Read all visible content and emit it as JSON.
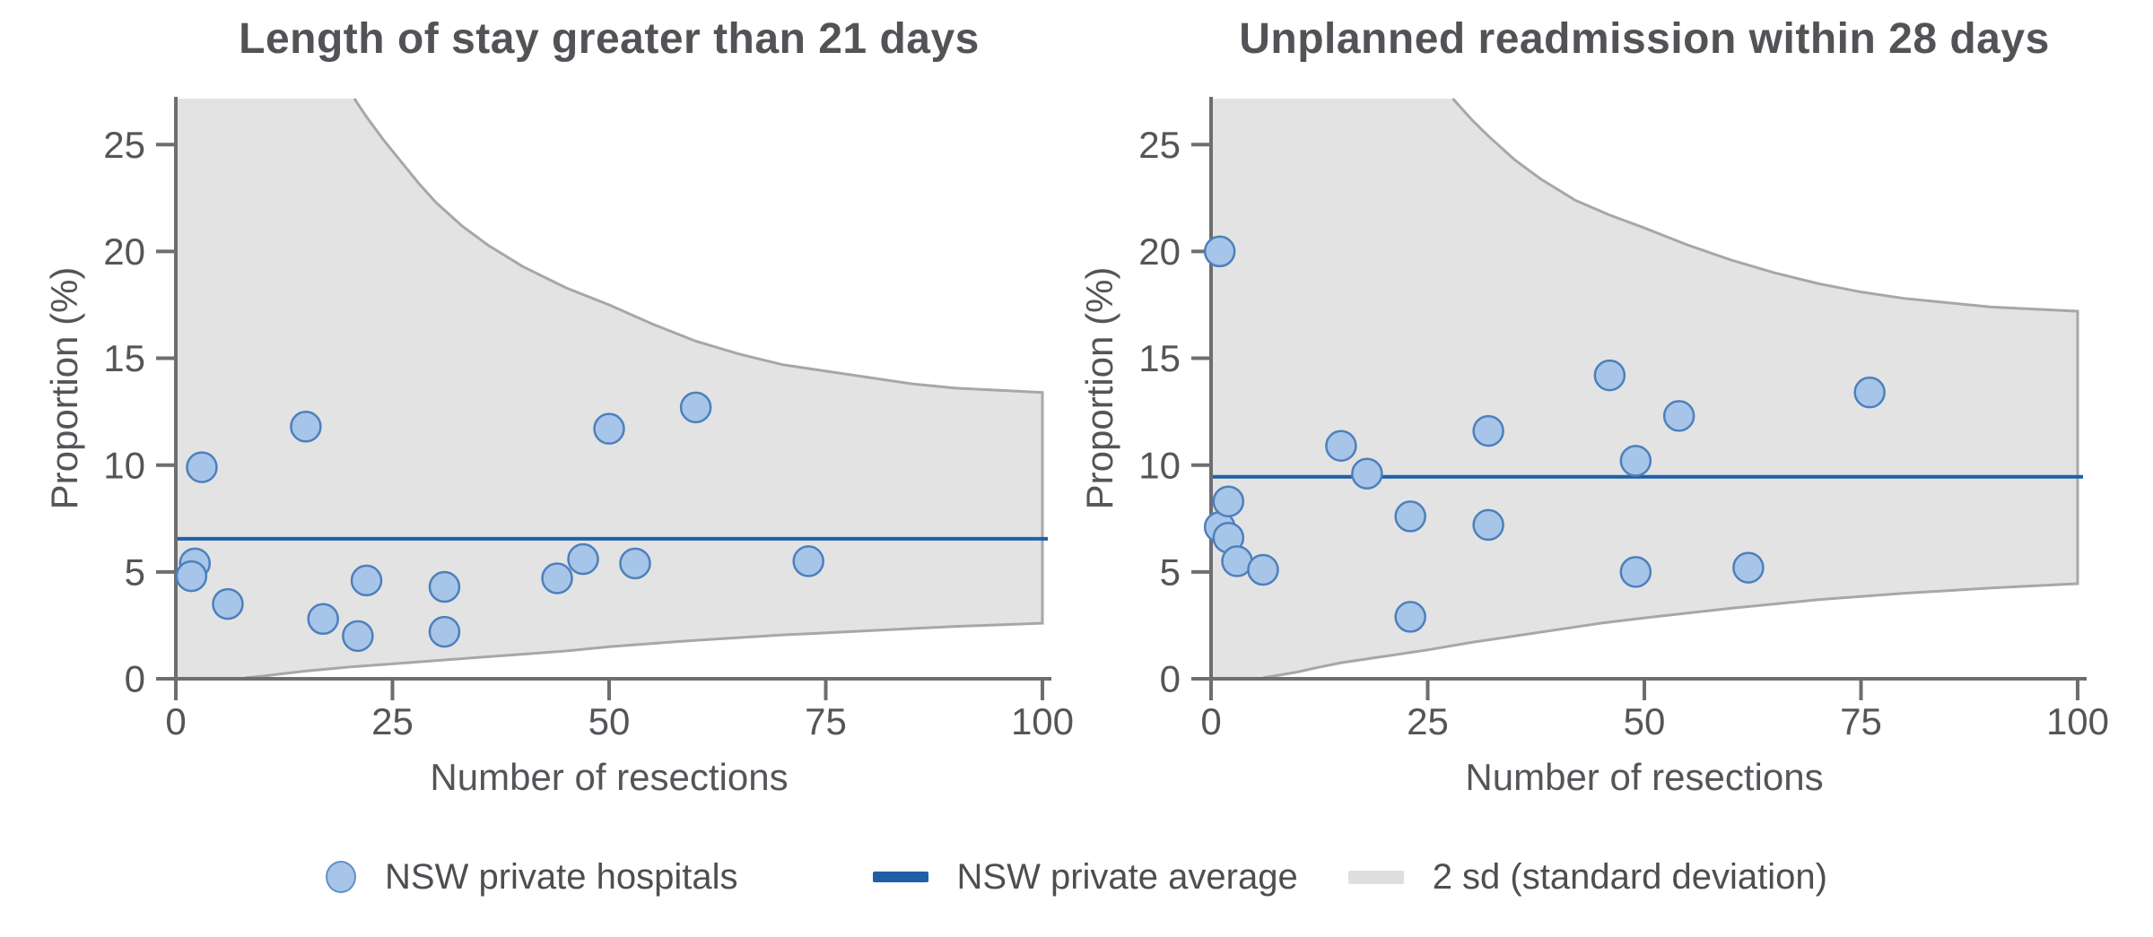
{
  "colors": {
    "average_line": "#1f5fa8",
    "point_fill": "#a6c5e8",
    "point_stroke": "#4d80bb",
    "band_fill": "#e3e3e4",
    "band_outline": "#a7a7a9",
    "axis": "#6d6e70",
    "tick_text": "#545559",
    "title_text": "#525357"
  },
  "legend": {
    "items": [
      {
        "label": "NSW private hospitals",
        "swatch": "dot"
      },
      {
        "label": "NSW private average",
        "swatch": "line"
      },
      {
        "label": "2 sd (standard deviation)",
        "swatch": "band"
      }
    ]
  },
  "chart_data": [
    {
      "type": "scatter",
      "title": "Length of stay greater than 21 days",
      "xlabel": "Number of resections",
      "ylabel": "Proportion (%)",
      "xlim": [
        0,
        100
      ],
      "ylim": [
        0,
        27.15
      ],
      "xticks": [
        0,
        25,
        50,
        75,
        100
      ],
      "yticks": [
        0,
        5,
        10,
        15,
        20,
        25
      ],
      "grid": false,
      "average": 6.55,
      "points": [
        [
          2.2,
          5.4
        ],
        [
          1.8,
          4.8
        ],
        [
          3,
          9.9
        ],
        [
          6,
          3.5
        ],
        [
          15,
          11.8
        ],
        [
          17,
          2.8
        ],
        [
          21,
          2.0
        ],
        [
          22,
          4.6
        ],
        [
          31,
          4.3
        ],
        [
          31,
          2.2
        ],
        [
          44,
          4.7
        ],
        [
          47,
          5.6
        ],
        [
          50,
          11.7
        ],
        [
          53,
          5.4
        ],
        [
          60,
          12.7
        ],
        [
          73,
          5.5
        ]
      ],
      "funnel_upper": [
        [
          20.6,
          27.15
        ],
        [
          22,
          26.3
        ],
        [
          24,
          25.2
        ],
        [
          26,
          24.2
        ],
        [
          28,
          23.2
        ],
        [
          30,
          22.3
        ],
        [
          33,
          21.2
        ],
        [
          36,
          20.3
        ],
        [
          40,
          19.3
        ],
        [
          45,
          18.3
        ],
        [
          50,
          17.5
        ],
        [
          55,
          16.6
        ],
        [
          60,
          15.8
        ],
        [
          65,
          15.2
        ],
        [
          70,
          14.7
        ],
        [
          75,
          14.4
        ],
        [
          80,
          14.1
        ],
        [
          85,
          13.8
        ],
        [
          90,
          13.6
        ],
        [
          95,
          13.5
        ],
        [
          100,
          13.4
        ]
      ],
      "funnel_lower": [
        [
          8,
          0.05
        ],
        [
          10,
          0.12
        ],
        [
          12,
          0.22
        ],
        [
          15,
          0.36
        ],
        [
          20,
          0.55
        ],
        [
          25,
          0.7
        ],
        [
          30,
          0.85
        ],
        [
          35,
          1.0
        ],
        [
          40,
          1.15
        ],
        [
          45,
          1.3
        ],
        [
          50,
          1.5
        ],
        [
          60,
          1.8
        ],
        [
          70,
          2.05
        ],
        [
          80,
          2.25
        ],
        [
          90,
          2.45
        ],
        [
          100,
          2.6
        ]
      ]
    },
    {
      "type": "scatter",
      "title": "Unplanned readmission within 28 days",
      "xlabel": "Number of resections",
      "ylabel": "Proportion (%)",
      "xlim": [
        0,
        100
      ],
      "ylim": [
        0,
        27.15
      ],
      "xticks": [
        0,
        25,
        50,
        75,
        100
      ],
      "yticks": [
        0,
        5,
        10,
        15,
        20,
        25
      ],
      "grid": false,
      "average": 9.45,
      "points": [
        [
          1,
          20.0
        ],
        [
          1,
          7.1
        ],
        [
          2,
          8.3
        ],
        [
          2,
          6.6
        ],
        [
          3,
          5.5
        ],
        [
          6,
          5.1
        ],
        [
          15,
          10.9
        ],
        [
          18,
          9.6
        ],
        [
          23,
          7.6
        ],
        [
          23,
          2.9
        ],
        [
          32,
          11.6
        ],
        [
          32,
          7.2
        ],
        [
          46,
          14.2
        ],
        [
          49,
          10.2
        ],
        [
          49,
          5.0
        ],
        [
          54,
          12.3
        ],
        [
          62,
          5.2
        ],
        [
          76,
          13.4
        ]
      ],
      "funnel_upper": [
        [
          27.9,
          27.15
        ],
        [
          30,
          26.2
        ],
        [
          32,
          25.4
        ],
        [
          35,
          24.3
        ],
        [
          38,
          23.4
        ],
        [
          42,
          22.4
        ],
        [
          46,
          21.7
        ],
        [
          50,
          21.1
        ],
        [
          55,
          20.3
        ],
        [
          60,
          19.6
        ],
        [
          65,
          19.0
        ],
        [
          70,
          18.5
        ],
        [
          75,
          18.1
        ],
        [
          80,
          17.8
        ],
        [
          85,
          17.6
        ],
        [
          90,
          17.4
        ],
        [
          95,
          17.3
        ],
        [
          100,
          17.2
        ]
      ],
      "funnel_lower": [
        [
          6,
          0.05
        ],
        [
          8,
          0.18
        ],
        [
          10,
          0.32
        ],
        [
          12,
          0.5
        ],
        [
          15,
          0.75
        ],
        [
          20,
          1.05
        ],
        [
          25,
          1.35
        ],
        [
          30,
          1.7
        ],
        [
          35,
          2.0
        ],
        [
          40,
          2.3
        ],
        [
          45,
          2.6
        ],
        [
          50,
          2.85
        ],
        [
          60,
          3.3
        ],
        [
          70,
          3.7
        ],
        [
          80,
          4.0
        ],
        [
          90,
          4.25
        ],
        [
          100,
          4.45
        ]
      ]
    }
  ]
}
